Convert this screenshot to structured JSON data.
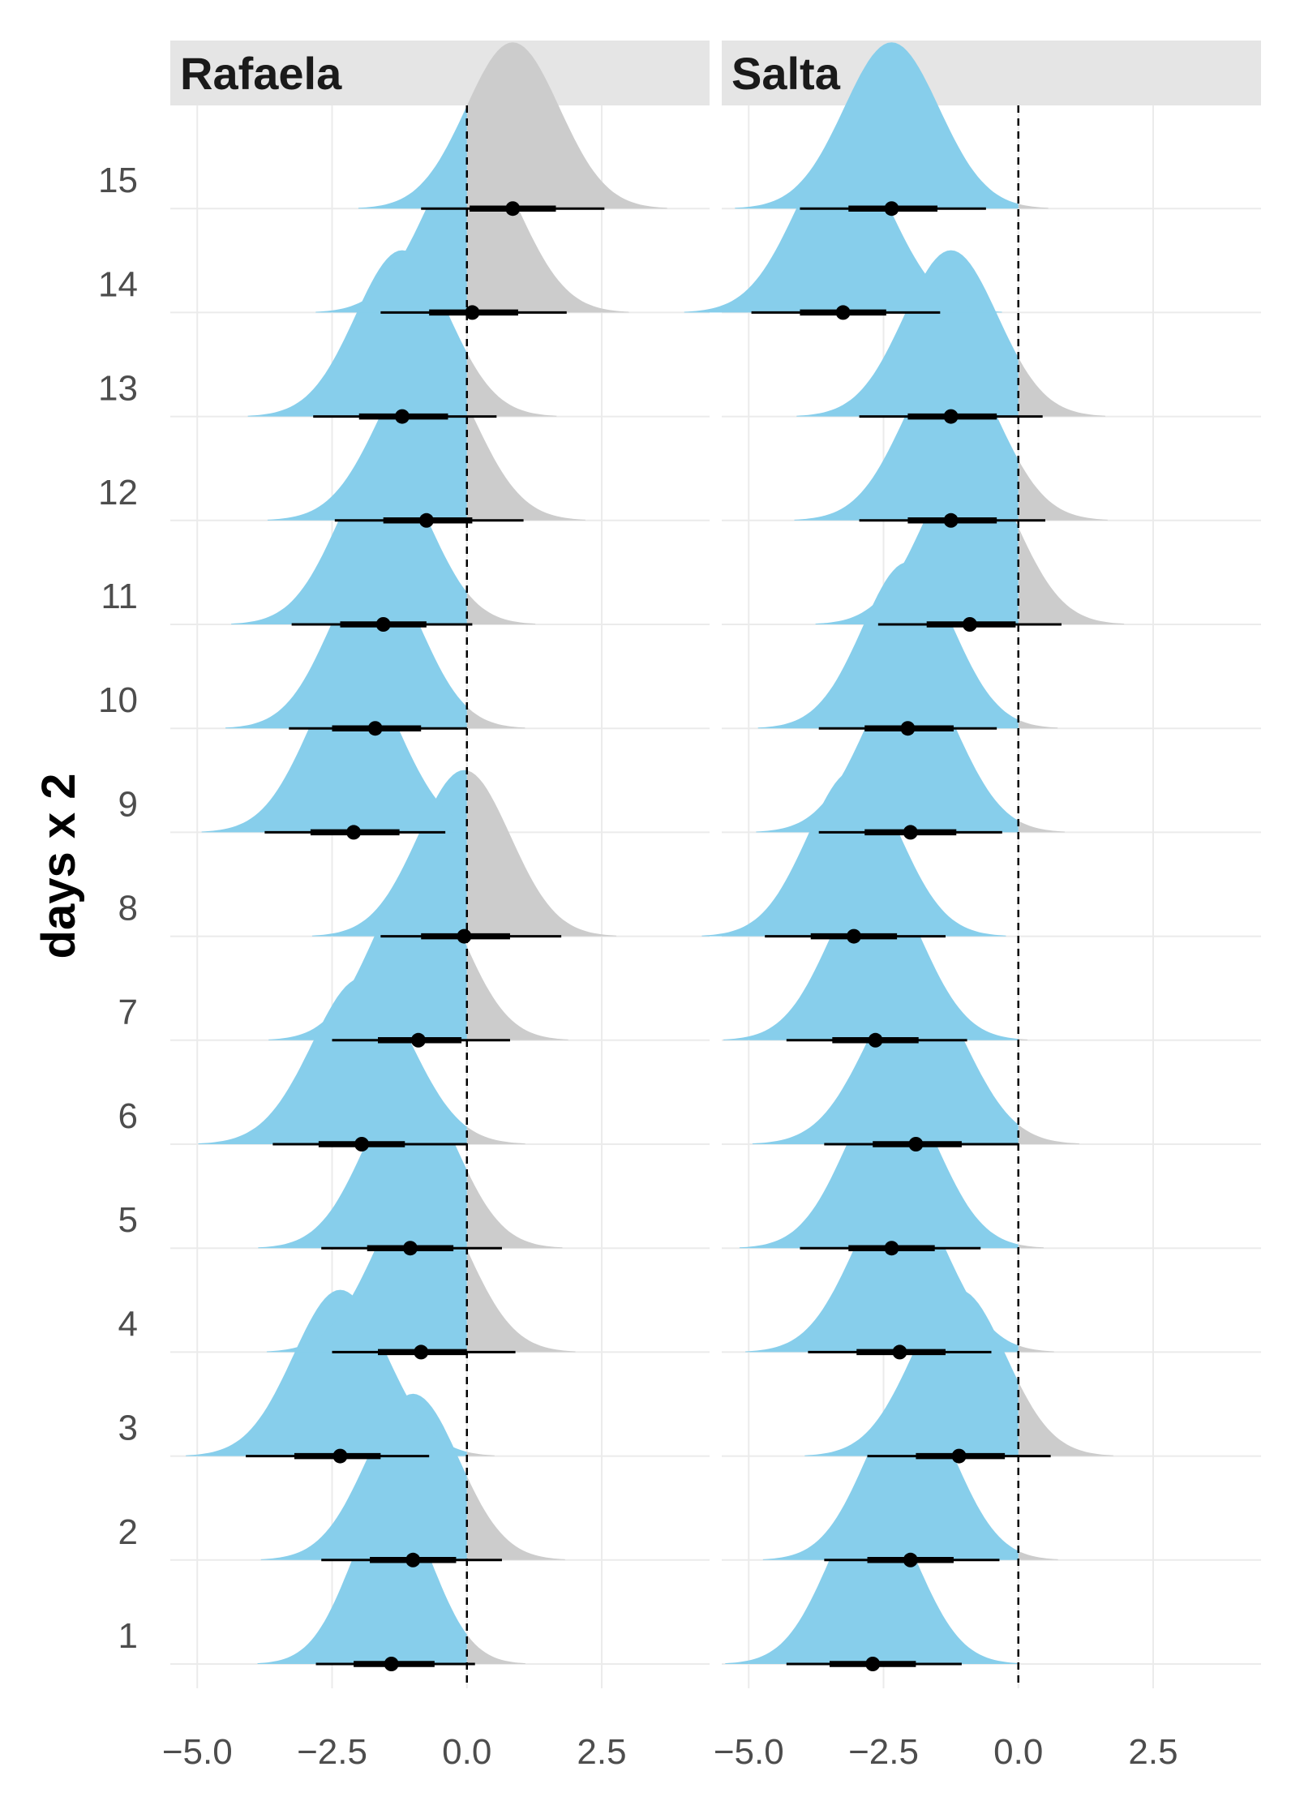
{
  "chart_data": {
    "type": "area",
    "ylabel": "days x 2",
    "xlabel": "",
    "x_ticks": [
      -5.0,
      -2.5,
      0.0,
      2.5
    ],
    "x_tick_labels": [
      "−5.0",
      "−2.5",
      "0.0",
      "2.5"
    ],
    "xlim": [
      -5.5,
      4.5
    ],
    "y_categories": [
      "1",
      "2",
      "3",
      "4",
      "5",
      "6",
      "7",
      "8",
      "9",
      "10",
      "11",
      "12",
      "13",
      "14",
      "15"
    ],
    "reference_line_x": 0,
    "colors": {
      "below_zero": "#87ceeb",
      "above_zero": "#cccccc",
      "point": "#000000",
      "strip": "#e5e5e5"
    },
    "panels": [
      {
        "title": "Rafaela",
        "rows": [
          {
            "day": "1",
            "median": -1.4,
            "q66": [
              -2.1,
              -0.6
            ],
            "q95": [
              -2.8,
              0.15
            ]
          },
          {
            "day": "2",
            "median": -1.0,
            "q66": [
              -1.8,
              -0.2
            ],
            "q95": [
              -2.7,
              0.65
            ]
          },
          {
            "day": "3",
            "median": -2.35,
            "q66": [
              -3.2,
              -1.6
            ],
            "q95": [
              -4.1,
              -0.7
            ]
          },
          {
            "day": "4",
            "median": -0.85,
            "q66": [
              -1.65,
              0.0
            ],
            "q95": [
              -2.5,
              0.9
            ]
          },
          {
            "day": "5",
            "median": -1.05,
            "q66": [
              -1.85,
              -0.25
            ],
            "q95": [
              -2.7,
              0.65
            ]
          },
          {
            "day": "6",
            "median": -1.95,
            "q66": [
              -2.75,
              -1.15
            ],
            "q95": [
              -3.6,
              0.0
            ]
          },
          {
            "day": "7",
            "median": -0.9,
            "q66": [
              -1.65,
              -0.1
            ],
            "q95": [
              -2.5,
              0.8
            ]
          },
          {
            "day": "8",
            "median": -0.05,
            "q66": [
              -0.85,
              0.8
            ],
            "q95": [
              -1.6,
              1.75
            ]
          },
          {
            "day": "9",
            "median": -2.1,
            "q66": [
              -2.9,
              -1.25
            ],
            "q95": [
              -3.75,
              -0.4
            ]
          },
          {
            "day": "10",
            "median": -1.7,
            "q66": [
              -2.5,
              -0.85
            ],
            "q95": [
              -3.3,
              0.0
            ]
          },
          {
            "day": "11",
            "median": -1.55,
            "q66": [
              -2.35,
              -0.75
            ],
            "q95": [
              -3.25,
              0.1
            ]
          },
          {
            "day": "12",
            "median": -0.75,
            "q66": [
              -1.55,
              0.1
            ],
            "q95": [
              -2.45,
              1.05
            ]
          },
          {
            "day": "13",
            "median": -1.2,
            "q66": [
              -2.0,
              -0.35
            ],
            "q95": [
              -2.85,
              0.55
            ]
          },
          {
            "day": "14",
            "median": 0.1,
            "q66": [
              -0.7,
              0.95
            ],
            "q95": [
              -1.6,
              1.85
            ]
          },
          {
            "day": "15",
            "median": 0.85,
            "q66": [
              0.05,
              1.65
            ],
            "q95": [
              -0.85,
              2.55
            ]
          }
        ]
      },
      {
        "title": "Salta",
        "rows": [
          {
            "day": "1",
            "median": -2.7,
            "q66": [
              -3.5,
              -1.9
            ],
            "q95": [
              -4.3,
              -1.05
            ]
          },
          {
            "day": "2",
            "median": -2.0,
            "q66": [
              -2.8,
              -1.2
            ],
            "q95": [
              -3.6,
              -0.35
            ]
          },
          {
            "day": "3",
            "median": -1.1,
            "q66": [
              -1.9,
              -0.25
            ],
            "q95": [
              -2.8,
              0.6
            ]
          },
          {
            "day": "4",
            "median": -2.2,
            "q66": [
              -3.0,
              -1.35
            ],
            "q95": [
              -3.9,
              -0.5
            ]
          },
          {
            "day": "5",
            "median": -2.35,
            "q66": [
              -3.15,
              -1.55
            ],
            "q95": [
              -4.05,
              -0.7
            ]
          },
          {
            "day": "6",
            "median": -1.9,
            "q66": [
              -2.7,
              -1.05
            ],
            "q95": [
              -3.6,
              0.0
            ]
          },
          {
            "day": "7",
            "median": -2.65,
            "q66": [
              -3.45,
              -1.85
            ],
            "q95": [
              -4.3,
              -0.95
            ]
          },
          {
            "day": "8",
            "median": -3.05,
            "q66": [
              -3.85,
              -2.25
            ],
            "q95": [
              -4.7,
              -1.35
            ]
          },
          {
            "day": "9",
            "median": -2.0,
            "q66": [
              -2.85,
              -1.15
            ],
            "q95": [
              -3.7,
              -0.3
            ]
          },
          {
            "day": "10",
            "median": -2.05,
            "q66": [
              -2.85,
              -1.2
            ],
            "q95": [
              -3.7,
              -0.4
            ]
          },
          {
            "day": "11",
            "median": -0.9,
            "q66": [
              -1.7,
              -0.05
            ],
            "q95": [
              -2.6,
              0.8
            ]
          },
          {
            "day": "12",
            "median": -1.25,
            "q66": [
              -2.05,
              -0.4
            ],
            "q95": [
              -2.95,
              0.5
            ]
          },
          {
            "day": "13",
            "median": -1.25,
            "q66": [
              -2.05,
              -0.4
            ],
            "q95": [
              -2.95,
              0.45
            ]
          },
          {
            "day": "14",
            "median": -3.25,
            "q66": [
              -4.05,
              -2.45
            ],
            "q95": [
              -4.95,
              -1.45
            ]
          },
          {
            "day": "15",
            "median": -2.35,
            "q66": [
              -3.15,
              -1.5
            ],
            "q95": [
              -4.05,
              -0.6
            ]
          }
        ]
      }
    ]
  }
}
